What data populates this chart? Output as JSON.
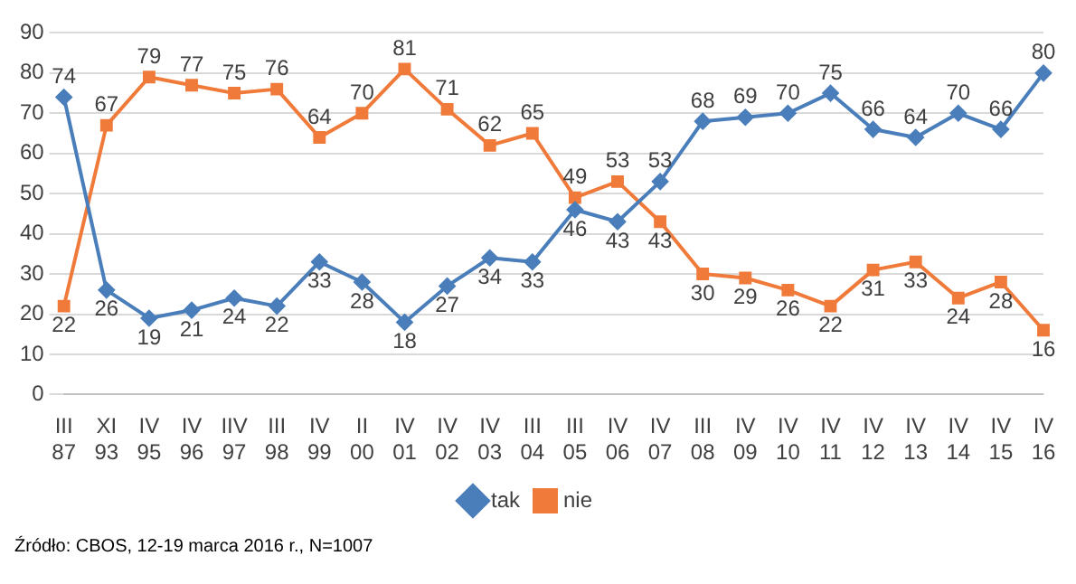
{
  "chart_data": {
    "type": "line",
    "categories": [
      "III 87",
      "XI 93",
      "IV 95",
      "IV 96",
      "IIV 97",
      "III 98",
      "IV 99",
      "II 00",
      "IV 01",
      "IV 02",
      "IV 03",
      "III 04",
      "III 05",
      "IV 06",
      "IV 07",
      "III 08",
      "IV 09",
      "IV 10",
      "IV 11",
      "IV 12",
      "IV 13",
      "IV 14",
      "IV 15",
      "IV 16"
    ],
    "series": [
      {
        "name": "tak",
        "color": "#4a7ebb",
        "marker": "diamond",
        "values": [
          74,
          26,
          19,
          21,
          24,
          22,
          33,
          28,
          18,
          27,
          34,
          33,
          46,
          43,
          53,
          68,
          69,
          70,
          75,
          66,
          64,
          70,
          66,
          80
        ]
      },
      {
        "name": "nie",
        "color": "#f07a3a",
        "marker": "square",
        "values": [
          22,
          67,
          79,
          77,
          75,
          76,
          64,
          70,
          81,
          71,
          62,
          65,
          49,
          53,
          43,
          30,
          29,
          26,
          22,
          31,
          33,
          24,
          28,
          16
        ]
      }
    ],
    "ylim": [
      0,
      90
    ],
    "yticks": [
      0,
      10,
      20,
      30,
      40,
      50,
      60,
      70,
      80,
      90
    ],
    "grid": "y",
    "legend": "bottom",
    "data_labels": true,
    "line_style": "solid",
    "annotations": [
      "Źródło: CBOS, 12-19 marca 2016 r., N=1007"
    ]
  }
}
